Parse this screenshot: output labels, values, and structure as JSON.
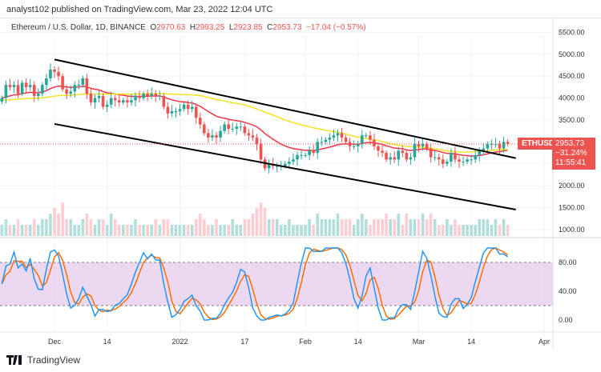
{
  "header": {
    "published": "analyst102 published on TradingView.com, Mar 23, 2022 12:04 UTC"
  },
  "legend": {
    "title": "Ethereum / U.S. Dollar, 1D, BINANCE",
    "o_label": "O",
    "o": "2970.63",
    "h_label": "H",
    "h": "2993.25",
    "l_label": "L",
    "l": "2923.85",
    "c_label": "C",
    "c": "2953.73",
    "change": "−17.04 (−0.57%)"
  },
  "price_tag": {
    "symbol": "ETHUSD",
    "price": "2953.73",
    "change": "−31.24%",
    "countdown": "11:55:41",
    "color": "#ef5350"
  },
  "footer": {
    "brand": "TradingView"
  },
  "chart_data": {
    "type": "candlestick",
    "start_date": "2021-11-18",
    "closes": [
      4000,
      4300,
      4250,
      4300,
      4100,
      4350,
      4250,
      4300,
      4050,
      4100,
      4300,
      4450,
      4650,
      4600,
      4500,
      4200,
      4100,
      4150,
      4300,
      4300,
      4450,
      4100,
      3900,
      4000,
      4050,
      3800,
      3850,
      4000,
      3950,
      3900,
      3950,
      3900,
      3950,
      4050,
      4000,
      4100,
      4050,
      4100,
      4050,
      4050,
      3800,
      3650,
      3700,
      3700,
      3750,
      3850,
      3750,
      3800,
      3550,
      3400,
      3200,
      3100,
      3150,
      3100,
      3250,
      3400,
      3300,
      3300,
      3350,
      3350,
      3200,
      3150,
      3100,
      2950,
      2600,
      2400,
      2500,
      2450,
      2450,
      2450,
      2500,
      2550,
      2600,
      2700,
      2700,
      2700,
      2800,
      2750,
      3000,
      3000,
      3050,
      3100,
      3150,
      3200,
      3100,
      3000,
      2900,
      2900,
      2950,
      3150,
      3150,
      3050,
      2900,
      2800,
      2750,
      2600,
      2650,
      2600,
      2800,
      2750,
      2600,
      2650,
      2950,
      2900,
      2950,
      2850,
      2650,
      2650,
      2600,
      2500,
      2550,
      2750,
      2600,
      2550,
      2550,
      2600,
      2600,
      2700,
      2800,
      2850,
      2950,
      2950,
      2950,
      2850,
      3000,
      2953.73
    ],
    "volume": [
      2,
      3,
      2,
      2,
      3,
      2,
      2,
      2,
      3,
      2,
      3,
      3,
      4,
      5,
      4,
      6,
      3,
      3,
      2,
      2,
      3,
      4,
      3,
      2,
      3,
      3,
      2,
      4,
      3,
      2,
      2,
      2,
      2,
      3,
      2,
      2,
      2,
      2,
      3,
      2,
      3,
      3,
      2,
      2,
      2,
      2,
      2,
      2,
      3,
      4,
      3,
      2,
      2,
      3,
      2,
      2,
      2,
      3,
      2,
      2,
      3,
      3,
      4,
      5,
      6,
      5,
      3,
      3,
      3,
      2,
      2,
      3,
      2,
      2,
      2,
      2,
      3,
      2,
      4,
      3,
      3,
      3,
      3,
      4,
      3,
      3,
      3,
      2,
      3,
      4,
      3,
      2,
      3,
      3,
      3,
      4,
      3,
      3,
      4,
      2,
      4,
      3,
      3,
      3,
      4,
      3,
      4,
      3,
      2,
      2,
      3,
      2,
      3,
      2,
      2,
      2,
      2,
      2,
      3,
      3,
      3,
      2,
      3,
      2,
      3,
      2
    ],
    "trendlines": [
      {
        "from": [
          "2021-12-01",
          4880
        ],
        "to": [
          "2022-03-25",
          2630
        ],
        "color": "#000000"
      },
      {
        "from": [
          "2021-12-01",
          3410
        ],
        "to": [
          "2022-03-25",
          1456
        ],
        "color": "#000000"
      }
    ],
    "moving_averages": [
      {
        "period": 20,
        "color": "#f23645"
      },
      {
        "period": 50,
        "color": "#f5e320"
      }
    ],
    "price_axis": [
      "5500.00",
      "5000.00",
      "4500.00",
      "4000.00",
      "3500.00",
      "2000.00",
      "1500.00",
      "1000.00"
    ],
    "price_ylim": [
      1000,
      5500
    ],
    "time_axis": [
      {
        "label": "Dec",
        "date": "2021-12-01"
      },
      {
        "label": "14",
        "date": "2021-12-14"
      },
      {
        "label": "2022",
        "date": "2022-01-01"
      },
      {
        "label": "17",
        "date": "2022-01-17"
      },
      {
        "label": "Feb",
        "date": "2022-02-01"
      },
      {
        "label": "14",
        "date": "2022-02-14"
      },
      {
        "label": "Mar",
        "date": "2022-03-01"
      },
      {
        "label": "14",
        "date": "2022-03-14"
      },
      {
        "label": "Apr",
        "date": "2022-04-01"
      }
    ],
    "oscillator": {
      "type": "stochastic",
      "axis": [
        "80.00",
        "40.00",
        "0.00"
      ],
      "upper": 80,
      "lower": 20,
      "k_color": "#2196f3",
      "d_color": "#ff6d00",
      "band_color": "#e1bee7"
    },
    "colors": {
      "up": "#26a69a",
      "down": "#ef5350"
    }
  }
}
